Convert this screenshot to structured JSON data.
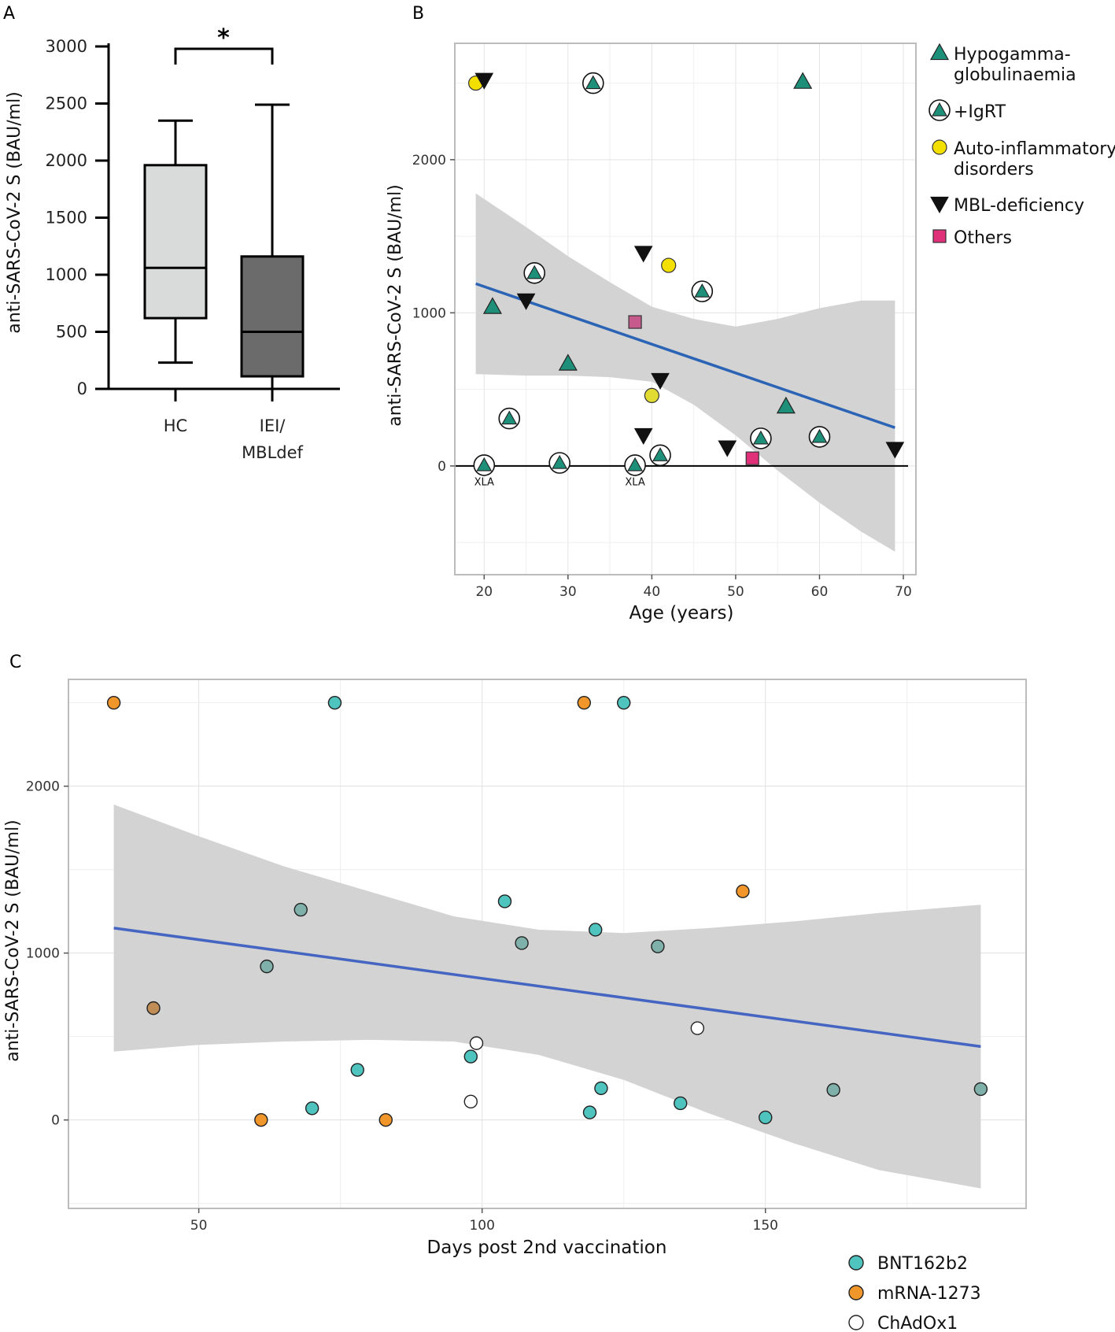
{
  "chart_data": [
    {
      "panel": "A",
      "type": "box",
      "ylabel": "anti-SARS-CoV-2 S (BAU/ml)",
      "ylim": [
        0,
        3000
      ],
      "yticks": [
        "3000",
        "2500",
        "2000",
        "1500",
        "1000",
        "500",
        "0"
      ],
      "significance": "*",
      "groups": [
        {
          "label_lines": [
            "HC"
          ],
          "whisker_low": 230,
          "q1": 620,
          "median": 1060,
          "q3": 1960,
          "whisker_high": 2350,
          "fill": "#d8dbda"
        },
        {
          "label_lines": [
            "IEI/",
            "MBLdef"
          ],
          "whisker_low": 0,
          "q1": 110,
          "median": 500,
          "q3": 1160,
          "whisker_high": 2490,
          "fill": "#6b6b6b"
        }
      ]
    },
    {
      "panel": "B",
      "type": "scatter",
      "xlabel": "Age (years)",
      "ylabel": "anti-SARS-CoV-2 S (BAU/ml)",
      "xlim": [
        16.5,
        71.5
      ],
      "ylim": [
        -710,
        2760
      ],
      "xticks": [
        "20",
        "30",
        "40",
        "50",
        "60",
        "70"
      ],
      "yticks": [
        "0",
        "1000",
        "2000"
      ],
      "trend": {
        "x1": 19,
        "y1": 1190,
        "x2": 69,
        "y2": 250
      },
      "ci": {
        "x": [
          19,
          25,
          30,
          35,
          40,
          45,
          50,
          55,
          60,
          65,
          69
        ],
        "upper": [
          1780,
          1560,
          1370,
          1200,
          1040,
          960,
          910,
          960,
          1030,
          1080,
          1080
        ],
        "lower": [
          600,
          590,
          590,
          580,
          550,
          400,
          200,
          -30,
          -240,
          -430,
          -560
        ]
      },
      "annotations": [
        {
          "text": "XLA",
          "x": 20,
          "y": -100
        },
        {
          "text": "XLA",
          "x": 38,
          "y": -100
        }
      ],
      "legend": [
        {
          "lines": [
            "Hypogamma-",
            "globulinaemia"
          ],
          "marker": "triangle",
          "color": "#1e8f78"
        },
        {
          "lines": [
            "+IgRT"
          ],
          "marker": "circled-triangle",
          "color": "#1e8f78"
        },
        {
          "lines": [
            "Auto-inflammatory",
            "disorders"
          ],
          "marker": "circle",
          "color": "#f3e000"
        },
        {
          "lines": [
            "MBL-deficiency"
          ],
          "marker": "down-triangle",
          "color": "#111111"
        },
        {
          "lines": [
            "Others"
          ],
          "marker": "square",
          "color": "#e0307a"
        }
      ],
      "points": [
        {
          "x": 19,
          "y": 2500,
          "group": "Auto-inflammatory disorders"
        },
        {
          "x": 20,
          "y": 2520,
          "group": "MBL-deficiency"
        },
        {
          "x": 33,
          "y": 2500,
          "group": "+IgRT"
        },
        {
          "x": 58,
          "y": 2510,
          "group": "Hypogammaglobulinaemia"
        },
        {
          "x": 39,
          "y": 1390,
          "group": "MBL-deficiency"
        },
        {
          "x": 42,
          "y": 1310,
          "group": "Auto-inflammatory disorders"
        },
        {
          "x": 26,
          "y": 1260,
          "group": "+IgRT"
        },
        {
          "x": 46,
          "y": 1140,
          "group": "+IgRT"
        },
        {
          "x": 21,
          "y": 1040,
          "group": "Hypogammaglobulinaemia"
        },
        {
          "x": 25,
          "y": 1080,
          "group": "MBL-deficiency"
        },
        {
          "x": 38,
          "y": 940,
          "group": "Others"
        },
        {
          "x": 30,
          "y": 670,
          "group": "Hypogammaglobulinaemia"
        },
        {
          "x": 41,
          "y": 560,
          "group": "MBL-deficiency"
        },
        {
          "x": 40,
          "y": 460,
          "group": "Auto-inflammatory disorders"
        },
        {
          "x": 56,
          "y": 390,
          "group": "Hypogammaglobulinaemia"
        },
        {
          "x": 23,
          "y": 310,
          "group": "+IgRT"
        },
        {
          "x": 39,
          "y": 200,
          "group": "MBL-deficiency"
        },
        {
          "x": 53,
          "y": 180,
          "group": "+IgRT"
        },
        {
          "x": 60,
          "y": 190,
          "group": "+IgRT"
        },
        {
          "x": 49,
          "y": 120,
          "group": "MBL-deficiency"
        },
        {
          "x": 69,
          "y": 110,
          "group": "MBL-deficiency"
        },
        {
          "x": 41,
          "y": 70,
          "group": "+IgRT"
        },
        {
          "x": 52,
          "y": 50,
          "group": "Others"
        },
        {
          "x": 29,
          "y": 20,
          "group": "+IgRT"
        },
        {
          "x": 20,
          "y": 5,
          "group": "+IgRT"
        },
        {
          "x": 38,
          "y": 5,
          "group": "+IgRT"
        }
      ]
    },
    {
      "panel": "C",
      "type": "scatter",
      "xlabel": "Days post 2nd vaccination",
      "ylabel": "anti-SARS-CoV-2 S (BAU/ml)",
      "xlim": [
        27,
        196
      ],
      "ylim": [
        -530,
        2640
      ],
      "xticks": [
        "50",
        "100",
        "150"
      ],
      "yticks": [
        "0",
        "1000",
        "2000"
      ],
      "trend": {
        "x1": 35,
        "y1": 1150,
        "x2": 188,
        "y2": 440
      },
      "ci": {
        "x": [
          35,
          50,
          65,
          80,
          95,
          110,
          125,
          140,
          155,
          170,
          188
        ],
        "upper": [
          1890,
          1700,
          1520,
          1370,
          1220,
          1140,
          1120,
          1150,
          1190,
          1240,
          1290
        ],
        "lower": [
          410,
          450,
          470,
          480,
          470,
          390,
          240,
          40,
          -140,
          -300,
          -410
        ]
      },
      "legend": [
        {
          "label": "BNT162b2",
          "color": "#4fc3bd"
        },
        {
          "label": "mRNA-1273",
          "color": "#f0962a"
        },
        {
          "label": "ChAdOx1",
          "color": "#ffffff"
        }
      ],
      "points": [
        {
          "x": 35,
          "y": 2500,
          "vaccine": "mRNA-1273",
          "color": "#f0962a"
        },
        {
          "x": 74,
          "y": 2500,
          "vaccine": "BNT162b2",
          "color": "#4fc3bd"
        },
        {
          "x": 118,
          "y": 2500,
          "vaccine": "mRNA-1273",
          "color": "#f0962a"
        },
        {
          "x": 125,
          "y": 2500,
          "vaccine": "BNT162b2",
          "color": "#4fc3bd"
        },
        {
          "x": 146,
          "y": 1370,
          "vaccine": "mRNA-1273",
          "color": "#f0962a"
        },
        {
          "x": 104,
          "y": 1310,
          "vaccine": "BNT162b2",
          "color": "#4fc3bd"
        },
        {
          "x": 68,
          "y": 1260,
          "vaccine": "BNT162b2",
          "color": "#7fb0a9"
        },
        {
          "x": 120,
          "y": 1140,
          "vaccine": "BNT162b2",
          "color": "#4fc3bd"
        },
        {
          "x": 107,
          "y": 1060,
          "vaccine": "BNT162b2",
          "color": "#7fb0a9"
        },
        {
          "x": 131,
          "y": 1040,
          "vaccine": "BNT162b2",
          "color": "#7fb0a9"
        },
        {
          "x": 62,
          "y": 920,
          "vaccine": "BNT162b2",
          "color": "#7fb0a9"
        },
        {
          "x": 42,
          "y": 670,
          "vaccine": "mRNA-1273",
          "color": "#bf8d55"
        },
        {
          "x": 138,
          "y": 550,
          "vaccine": "ChAdOx1",
          "color": "#ffffff"
        },
        {
          "x": 99,
          "y": 460,
          "vaccine": "ChAdOx1",
          "color": "#ffffff"
        },
        {
          "x": 98,
          "y": 380,
          "vaccine": "BNT162b2",
          "color": "#4fc3bd"
        },
        {
          "x": 78,
          "y": 300,
          "vaccine": "BNT162b2",
          "color": "#4fc3bd"
        },
        {
          "x": 121,
          "y": 190,
          "vaccine": "BNT162b2",
          "color": "#4fc3bd"
        },
        {
          "x": 162,
          "y": 180,
          "vaccine": "BNT162b2",
          "color": "#7fb0a9"
        },
        {
          "x": 188,
          "y": 185,
          "vaccine": "BNT162b2",
          "color": "#7fb0a9"
        },
        {
          "x": 98,
          "y": 110,
          "vaccine": "ChAdOx1",
          "color": "#ffffff"
        },
        {
          "x": 135,
          "y": 100,
          "vaccine": "BNT162b2",
          "color": "#4fc3bd"
        },
        {
          "x": 70,
          "y": 70,
          "vaccine": "BNT162b2",
          "color": "#4fc3bd"
        },
        {
          "x": 119,
          "y": 45,
          "vaccine": "BNT162b2",
          "color": "#4fc3bd"
        },
        {
          "x": 150,
          "y": 15,
          "vaccine": "BNT162b2",
          "color": "#4fc3bd"
        },
        {
          "x": 61,
          "y": 0,
          "vaccine": "mRNA-1273",
          "color": "#f0962a"
        },
        {
          "x": 83,
          "y": 0,
          "vaccine": "mRNA-1273",
          "color": "#f0962a"
        }
      ]
    }
  ]
}
